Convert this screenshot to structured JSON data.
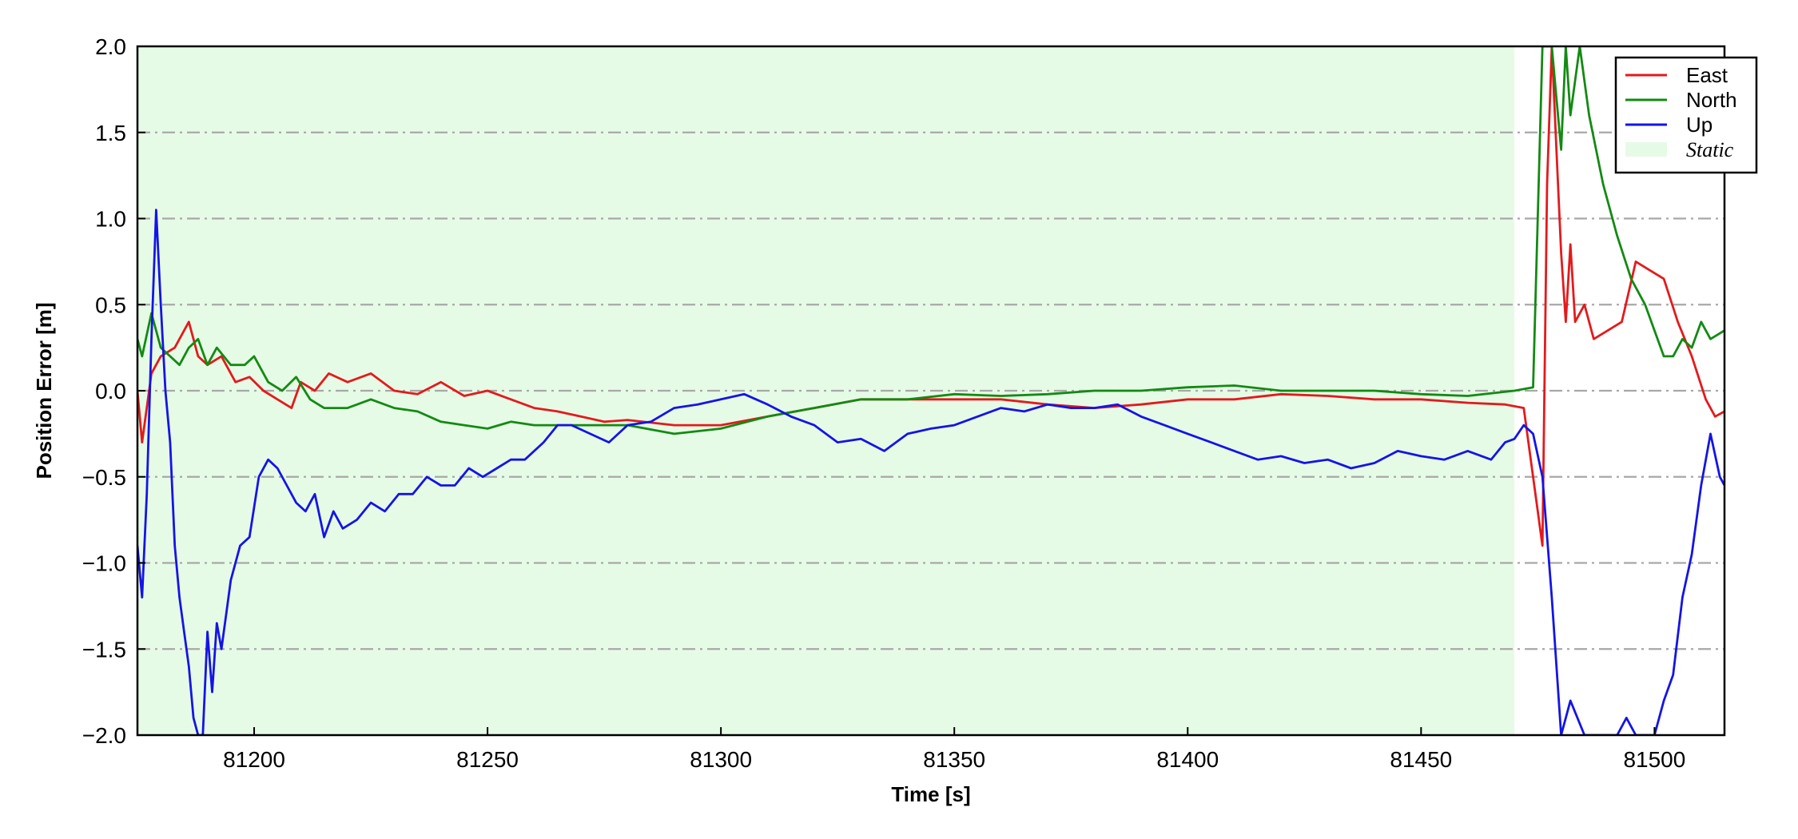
{
  "chart_data": {
    "type": "line",
    "xlabel": "Time [s]",
    "ylabel": "Position Error [m]",
    "xlim": [
      81175,
      81515
    ],
    "ylim": [
      -2.0,
      2.0
    ],
    "x_ticks": [
      81200,
      81250,
      81300,
      81350,
      81400,
      81450,
      81500
    ],
    "x_tick_labels": [
      "81200",
      "81250",
      "81300",
      "81350",
      "81400",
      "81450",
      "81500"
    ],
    "y_ticks": [
      -2.0,
      -1.5,
      -1.0,
      -0.5,
      0.0,
      0.5,
      1.0,
      1.5,
      2.0
    ],
    "y_tick_labels": [
      "−2.0",
      "−1.5",
      "−1.0",
      "−0.5",
      "0.0",
      "0.5",
      "1.0",
      "1.5",
      "2.0"
    ],
    "grid": "horizontal dash-dot",
    "legend_position": "top-right",
    "static_region": {
      "label": "Static",
      "x_start": 81175,
      "x_end": 81470,
      "color": "#e6fbe6"
    },
    "series": [
      {
        "name": "East",
        "color": "#e31a1c",
        "x": [
          81175,
          81176,
          81178,
          81180,
          81183,
          81186,
          81188,
          81190,
          81193,
          81196,
          81199,
          81202,
          81205,
          81208,
          81210,
          81213,
          81216,
          81220,
          81225,
          81230,
          81235,
          81240,
          81245,
          81250,
          81255,
          81260,
          81265,
          81270,
          81275,
          81280,
          81290,
          81300,
          81310,
          81320,
          81330,
          81340,
          81350,
          81360,
          81370,
          81380,
          81390,
          81400,
          81410,
          81420,
          81430,
          81440,
          81450,
          81460,
          81468,
          81472,
          81474,
          81476,
          81477,
          81478,
          81479,
          81480,
          81481,
          81482,
          81483,
          81485,
          81487,
          81490,
          81493,
          81496,
          81499,
          81502,
          81505,
          81508,
          81511,
          81513,
          81515
        ],
        "y": [
          0.0,
          -0.3,
          0.1,
          0.2,
          0.25,
          0.4,
          0.2,
          0.15,
          0.2,
          0.05,
          0.08,
          0.0,
          -0.05,
          -0.1,
          0.05,
          0.0,
          0.1,
          0.05,
          0.1,
          0.0,
          -0.02,
          0.05,
          -0.03,
          0.0,
          -0.05,
          -0.1,
          -0.12,
          -0.15,
          -0.18,
          -0.17,
          -0.2,
          -0.2,
          -0.15,
          -0.1,
          -0.05,
          -0.05,
          -0.05,
          -0.05,
          -0.08,
          -0.1,
          -0.08,
          -0.05,
          -0.05,
          -0.02,
          -0.03,
          -0.05,
          -0.05,
          -0.07,
          -0.08,
          -0.1,
          -0.5,
          -0.9,
          1.2,
          2.0,
          1.4,
          0.8,
          0.4,
          0.85,
          0.4,
          0.5,
          0.3,
          0.35,
          0.4,
          0.75,
          0.7,
          0.65,
          0.4,
          0.2,
          -0.05,
          -0.15,
          -0.12
        ]
      },
      {
        "name": "North",
        "color": "#138a13",
        "x": [
          81175,
          81176,
          81178,
          81180,
          81182,
          81184,
          81186,
          81188,
          81190,
          81192,
          81195,
          81198,
          81200,
          81203,
          81206,
          81209,
          81212,
          81215,
          81220,
          81225,
          81230,
          81235,
          81240,
          81245,
          81250,
          81255,
          81260,
          81265,
          81270,
          81275,
          81280,
          81290,
          81300,
          81310,
          81320,
          81330,
          81340,
          81350,
          81360,
          81370,
          81380,
          81390,
          81400,
          81410,
          81420,
          81430,
          81440,
          81450,
          81460,
          81470,
          81474,
          81476,
          81478,
          81479,
          81480,
          81481,
          81482,
          81484,
          81486,
          81489,
          81492,
          81495,
          81498,
          81500,
          81502,
          81504,
          81506,
          81508,
          81510,
          81512,
          81515
        ],
        "y": [
          0.3,
          0.2,
          0.45,
          0.25,
          0.2,
          0.15,
          0.25,
          0.3,
          0.15,
          0.25,
          0.15,
          0.15,
          0.2,
          0.05,
          0.0,
          0.08,
          -0.05,
          -0.1,
          -0.1,
          -0.05,
          -0.1,
          -0.12,
          -0.18,
          -0.2,
          -0.22,
          -0.18,
          -0.2,
          -0.2,
          -0.2,
          -0.2,
          -0.2,
          -0.25,
          -0.22,
          -0.15,
          -0.1,
          -0.05,
          -0.05,
          -0.02,
          -0.03,
          -0.02,
          0.0,
          0.0,
          0.02,
          0.03,
          0.0,
          0.0,
          0.0,
          -0.02,
          -0.03,
          0.0,
          0.02,
          2.0,
          2.0,
          1.7,
          1.4,
          2.0,
          1.6,
          2.0,
          1.6,
          1.2,
          0.9,
          0.65,
          0.5,
          0.35,
          0.2,
          0.2,
          0.3,
          0.25,
          0.4,
          0.3,
          0.35
        ]
      },
      {
        "name": "Up",
        "color": "#1414e6",
        "x": [
          81175,
          81176,
          81177,
          81178,
          81179,
          81180,
          81181,
          81182,
          81183,
          81184,
          81185,
          81186,
          81187,
          81188,
          81189,
          81190,
          81191,
          81192,
          81193,
          81194,
          81195,
          81197,
          81199,
          81201,
          81203,
          81205,
          81207,
          81209,
          81211,
          81213,
          81215,
          81217,
          81219,
          81222,
          81225,
          81228,
          81231,
          81234,
          81237,
          81240,
          81243,
          81246,
          81249,
          81252,
          81255,
          81258,
          81262,
          81265,
          81268,
          81272,
          81276,
          81280,
          81285,
          81290,
          81295,
          81300,
          81305,
          81310,
          81315,
          81320,
          81325,
          81330,
          81335,
          81340,
          81345,
          81350,
          81355,
          81360,
          81365,
          81370,
          81375,
          81380,
          81385,
          81390,
          81395,
          81400,
          81405,
          81410,
          81415,
          81420,
          81425,
          81430,
          81435,
          81440,
          81445,
          81450,
          81455,
          81460,
          81465,
          81468,
          81470,
          81472,
          81474,
          81476,
          81478,
          81480,
          81482,
          81485,
          81488,
          81490,
          81492,
          81494,
          81496,
          81498,
          81500,
          81502,
          81504,
          81506,
          81508,
          81510,
          81512,
          81514,
          81515
        ],
        "y": [
          -0.9,
          -1.2,
          -0.6,
          0.3,
          1.05,
          0.5,
          0.0,
          -0.3,
          -0.9,
          -1.2,
          -1.4,
          -1.6,
          -1.9,
          -2.0,
          -2.0,
          -1.4,
          -1.75,
          -1.35,
          -1.5,
          -1.3,
          -1.1,
          -0.9,
          -0.85,
          -0.5,
          -0.4,
          -0.45,
          -0.55,
          -0.65,
          -0.7,
          -0.6,
          -0.85,
          -0.7,
          -0.8,
          -0.75,
          -0.65,
          -0.7,
          -0.6,
          -0.6,
          -0.5,
          -0.55,
          -0.55,
          -0.45,
          -0.5,
          -0.45,
          -0.4,
          -0.4,
          -0.3,
          -0.2,
          -0.2,
          -0.25,
          -0.3,
          -0.2,
          -0.18,
          -0.1,
          -0.08,
          -0.05,
          -0.02,
          -0.08,
          -0.15,
          -0.2,
          -0.3,
          -0.28,
          -0.35,
          -0.25,
          -0.22,
          -0.2,
          -0.15,
          -0.1,
          -0.12,
          -0.08,
          -0.1,
          -0.1,
          -0.08,
          -0.15,
          -0.2,
          -0.25,
          -0.3,
          -0.35,
          -0.4,
          -0.38,
          -0.42,
          -0.4,
          -0.45,
          -0.42,
          -0.35,
          -0.38,
          -0.4,
          -0.35,
          -0.4,
          -0.3,
          -0.28,
          -0.2,
          -0.25,
          -0.5,
          -1.2,
          -2.0,
          -1.8,
          -2.0,
          -2.0,
          -2.0,
          -2.0,
          -1.9,
          -2.0,
          -2.0,
          -2.0,
          -1.8,
          -1.65,
          -1.2,
          -0.95,
          -0.55,
          -0.25,
          -0.5,
          -0.55
        ]
      }
    ]
  }
}
